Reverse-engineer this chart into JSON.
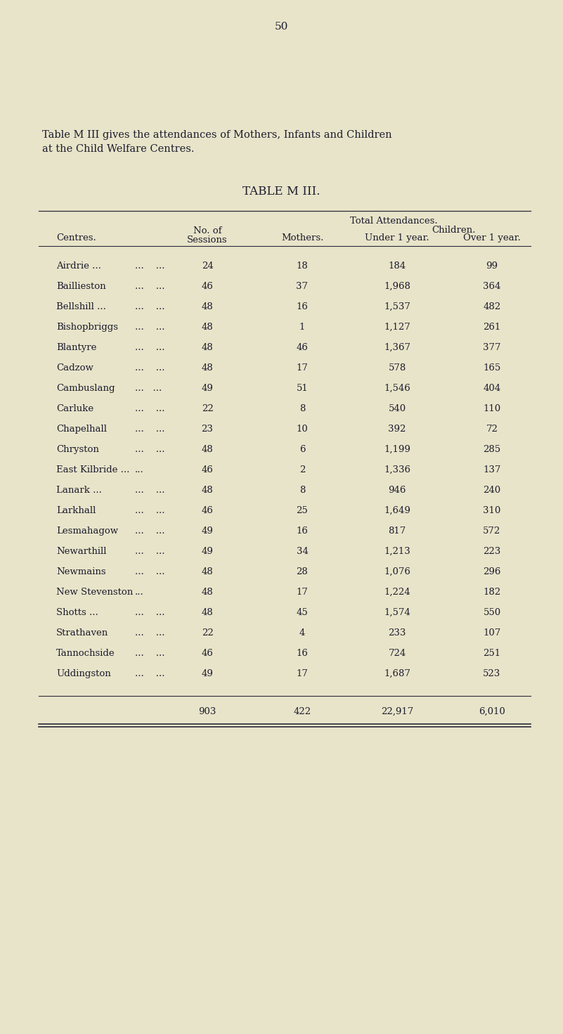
{
  "page_number": "50",
  "intro_line1": "Table M III gives the attendances of Mothers, Infants and Children",
  "intro_line2": "at the Child Welfare Centres.",
  "table_title": "TABLE M III.",
  "centres": [
    "Airdrie ...",
    "Baillieston",
    "Bellshill ...",
    "Bishopbriggs",
    "Blantyre",
    "Cadzow",
    "Cambuslang",
    "Carluke",
    "Chapelhall",
    "Chryston",
    "East Kilbride ...",
    "Lanark ...",
    "Larkhall",
    "Lesmahagow",
    "Newarthill",
    "Newmains",
    "New Stevenston",
    "Shotts ...",
    "Strathaven",
    "Tannochside",
    "Uddingston"
  ],
  "centres_dots": [
    "...    ...",
    "...    ...",
    "...    ...",
    "...    ...",
    "...    ...",
    "...    ...",
    "...   ...",
    "...    ...",
    "...    ...",
    "...    ...",
    "...",
    "...    ...",
    "...    ...",
    "...    ...",
    "...    ...",
    "...    ...",
    "...",
    "...    ...",
    "...    ...",
    "...    ...",
    "...    ..."
  ],
  "sessions": [
    "24",
    "46",
    "48",
    "48",
    "48",
    "48",
    "49",
    "22",
    "23",
    "48",
    "46",
    "48",
    "46",
    "49",
    "49",
    "48",
    "48",
    "48",
    "22",
    "46",
    "49"
  ],
  "mothers": [
    "18",
    "37",
    "16",
    "1",
    "46",
    "17",
    "51",
    "8",
    "10",
    "6",
    "2",
    "8",
    "25",
    "16",
    "34",
    "28",
    "17",
    "45",
    "4",
    "16",
    "17"
  ],
  "under1": [
    "184",
    "1,968",
    "1,537",
    "1,127",
    "1,367",
    "578",
    "1,546",
    "540",
    "392",
    "1,199",
    "1,336",
    "946",
    "1,649",
    "817",
    "1,213",
    "1,076",
    "1,224",
    "1,574",
    "233",
    "724",
    "1,687"
  ],
  "over1": [
    "99",
    "364",
    "482",
    "261",
    "377",
    "165",
    "404",
    "110",
    "72",
    "285",
    "137",
    "240",
    "310",
    "572",
    "223",
    "296",
    "182",
    "550",
    "107",
    "251",
    "523"
  ],
  "total_sessions": "903",
  "total_mothers": "422",
  "total_under1": "22,917",
  "total_over1": "6,010",
  "bg_color": "#e8e4c9",
  "text_color": "#1c1c2e",
  "line_color": "#2a2a3a"
}
